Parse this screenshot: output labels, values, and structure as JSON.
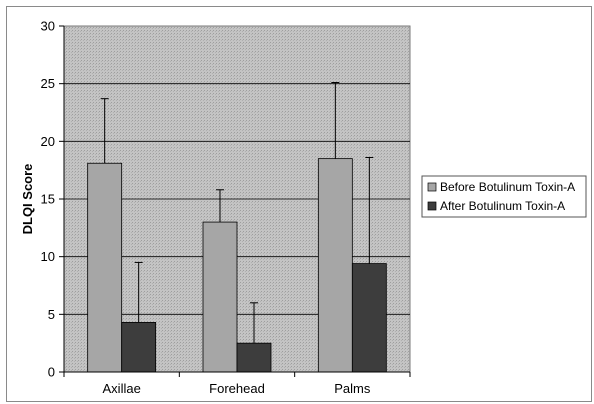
{
  "chart_data": {
    "type": "bar",
    "ylabel": "DLQI Score",
    "xlabel": "",
    "ylim": [
      0,
      30
    ],
    "yticks": [
      0,
      5,
      10,
      15,
      20,
      25,
      30
    ],
    "grid": true,
    "legend_position": "right",
    "categories": [
      "Axillae",
      "Forehead",
      "Palms"
    ],
    "series": [
      {
        "name": "Before Botulinum Toxin-A",
        "values": [
          18.1,
          13.0,
          18.5
        ],
        "error_upper": [
          23.7,
          15.8,
          25.1
        ],
        "color": "#a6a6a6"
      },
      {
        "name": "After Botulinum Toxin-A",
        "values": [
          4.3,
          2.5,
          9.4
        ],
        "error_upper": [
          9.5,
          6.0,
          18.6
        ],
        "color": "#3d3d3d"
      }
    ]
  }
}
